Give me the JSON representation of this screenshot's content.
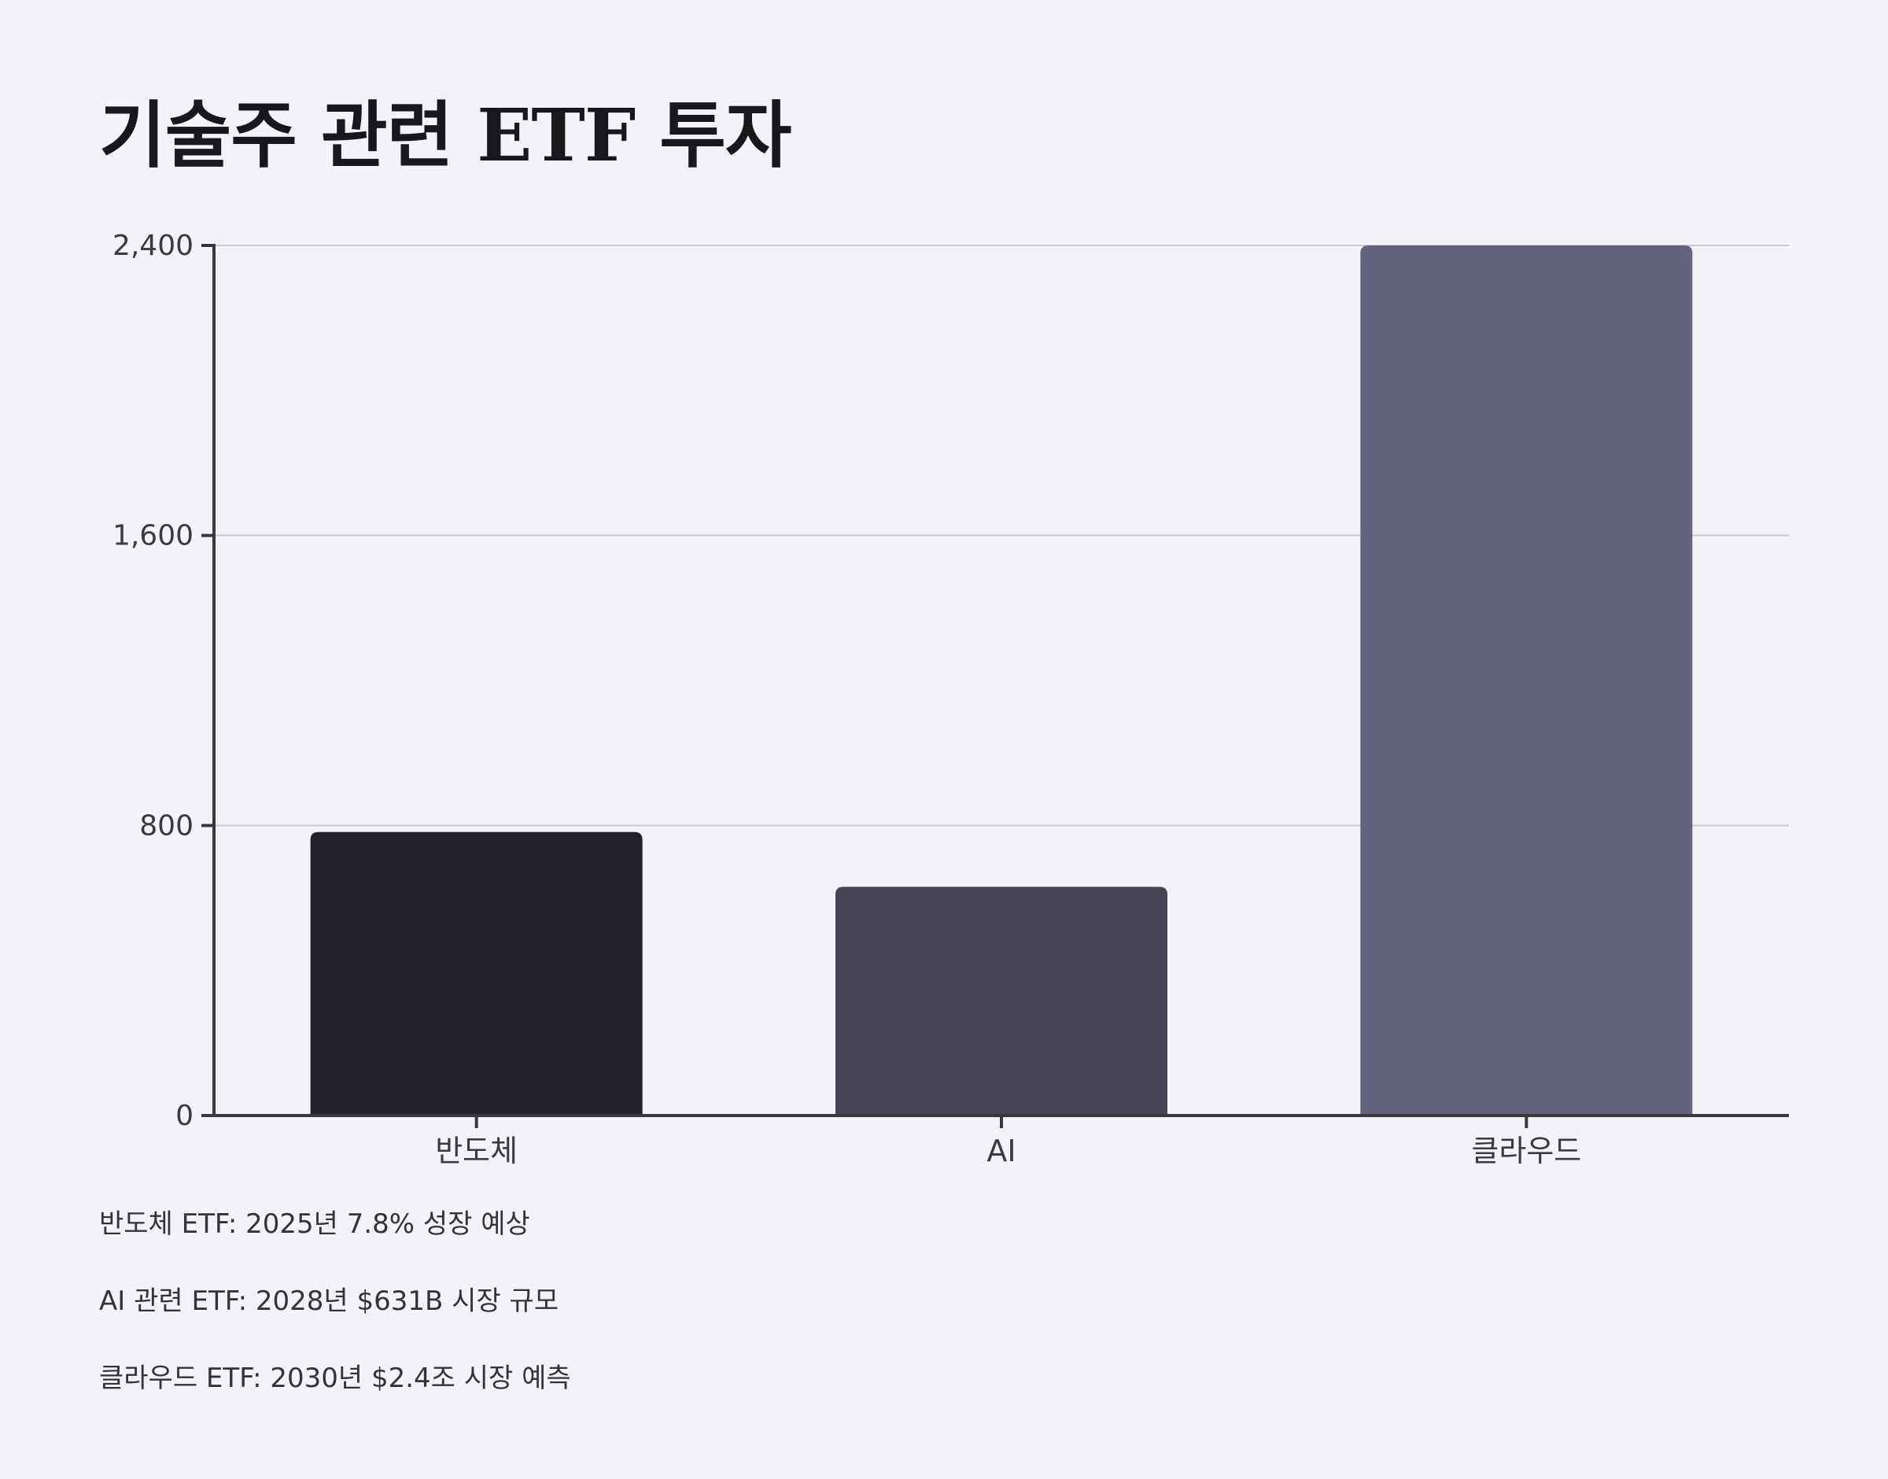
{
  "title": "기술주 관련 ETF 투자",
  "chart_data": {
    "type": "bar",
    "categories": [
      "반도체",
      "AI",
      "클라우드"
    ],
    "values": [
      782,
      631,
      2400
    ],
    "colors": [
      "#22222b",
      "#454455",
      "#63637c"
    ],
    "ylim": [
      0,
      2400
    ],
    "yticks": [
      0,
      800,
      1600,
      2400
    ],
    "ytick_labels": [
      "0",
      "800",
      "1,600",
      "2,400"
    ],
    "grid": true,
    "xlabel": "",
    "ylabel": ""
  },
  "notes": [
    "반도체 ETF: 2025년 7.8% 성장 예상",
    "AI 관련 ETF: 2028년 $631B 시장 규모",
    "클라우드 ETF: 2030년 $2.4조 시장 예측"
  ]
}
